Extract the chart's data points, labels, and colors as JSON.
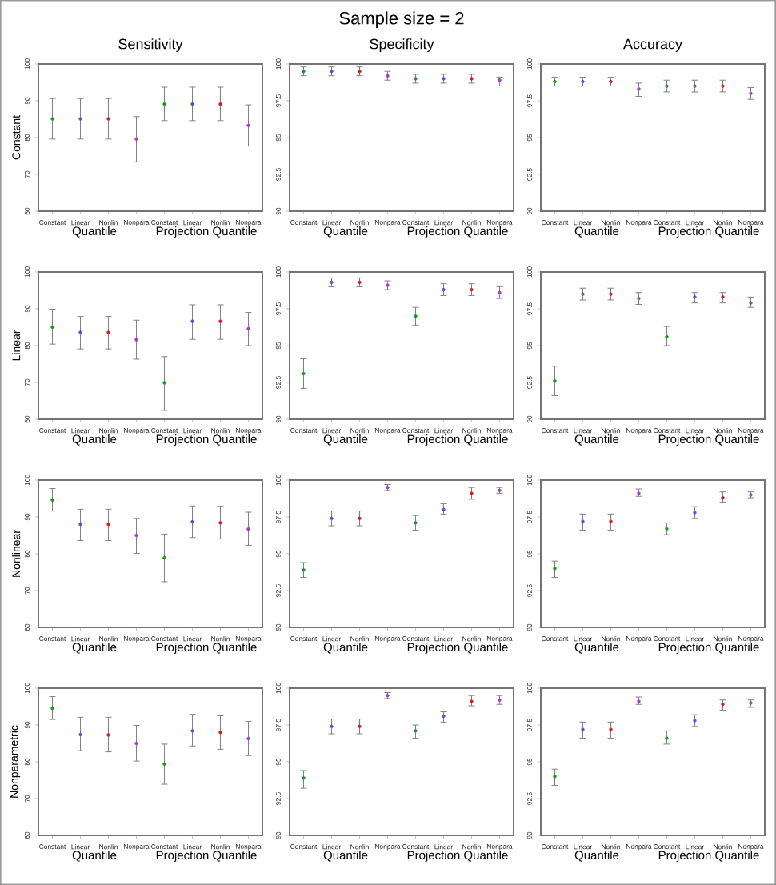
{
  "chart_data": [
    {
      "type": "scatter",
      "title": "Sensitivity",
      "ylabel": "Constant",
      "categories": [
        "Constant",
        "Linear",
        "Nonlin",
        "Nonpara",
        "Constant",
        "Linear",
        "Nonlin",
        "Nonpara"
      ],
      "values": [
        85.1,
        85.1,
        85.1,
        79.6,
        89.1,
        89.1,
        89.1,
        83.3
      ],
      "errors": [
        [
          79.6,
          90.6
        ],
        [
          79.6,
          90.6
        ],
        [
          79.6,
          90.6
        ],
        [
          73.4,
          85.7
        ],
        [
          84.6,
          93.7
        ],
        [
          84.6,
          93.7
        ],
        [
          84.6,
          93.7
        ],
        [
          77.7,
          88.9
        ]
      ],
      "colors": [
        "#1a9a1a",
        "#4a5ad0",
        "#d02020",
        "#a040c0",
        "#1a9a1a",
        "#4a5ad0",
        "#d02020",
        "#a040c0"
      ],
      "ylim": [
        60,
        100
      ],
      "yticks": [
        60,
        70,
        80,
        90,
        100
      ],
      "annotations": [
        "Quantile",
        "Projection Quantile"
      ]
    },
    {
      "type": "scatter",
      "title": "Sample size = 2",
      "subtitle": "Specificity",
      "categories": [
        "Constant",
        "Linear",
        "Nonlin",
        "Nonpara",
        "Constant",
        "Linear",
        "Nonlin",
        "Nonpara"
      ],
      "values": [
        99.5,
        99.5,
        99.5,
        99.2,
        99.0,
        99.0,
        99.0,
        98.9
      ],
      "errors": [
        [
          99.2,
          99.8
        ],
        [
          99.2,
          99.8
        ],
        [
          99.2,
          99.8
        ],
        [
          98.9,
          99.5
        ],
        [
          98.7,
          99.3
        ],
        [
          98.7,
          99.3
        ],
        [
          98.7,
          99.3
        ],
        [
          98.5,
          99.1
        ]
      ],
      "colors": [
        "#1a9a1a",
        "#4a5ad0",
        "#d02020",
        "#a040c0",
        "#1a9a1a",
        "#4a5ad0",
        "#d02020",
        "#a040c0"
      ],
      "ylim": [
        90,
        100
      ],
      "yticks": [
        90,
        92.5,
        95,
        97.5,
        100
      ],
      "annotations": [
        "Quantile",
        "Projection Quantile"
      ]
    },
    {
      "type": "scatter",
      "title": "Accuracy",
      "categories": [
        "Constant",
        "Linear",
        "Nonlin",
        "Nonpara",
        "Constant",
        "Linear",
        "Nonlin",
        "Nonpara"
      ],
      "values": [
        98.8,
        98.8,
        98.8,
        98.3,
        98.5,
        98.5,
        98.5,
        98.0
      ],
      "errors": [
        [
          98.5,
          99.1
        ],
        [
          98.5,
          99.1
        ],
        [
          98.5,
          99.1
        ],
        [
          97.8,
          98.7
        ],
        [
          98.1,
          98.9
        ],
        [
          98.1,
          98.9
        ],
        [
          98.1,
          98.9
        ],
        [
          97.6,
          98.4
        ]
      ],
      "colors": [
        "#1a9a1a",
        "#4a5ad0",
        "#d02020",
        "#a040c0",
        "#1a9a1a",
        "#4a5ad0",
        "#d02020",
        "#a040c0"
      ],
      "ylim": [
        90,
        100
      ],
      "yticks": [
        90,
        92.5,
        95,
        97.5,
        100
      ],
      "annotations": [
        "Quantile",
        "Projection Quantile"
      ]
    },
    {
      "type": "scatter",
      "ylabel": "Linear",
      "categories": [
        "Constant",
        "Linear",
        "Nonlin",
        "Nonpara",
        "Constant",
        "Linear",
        "Nonlin",
        "Nonpara"
      ],
      "values": [
        85.0,
        83.6,
        83.6,
        81.6,
        69.9,
        86.6,
        86.6,
        84.6
      ],
      "errors": [
        [
          80.4,
          89.9
        ],
        [
          79.1,
          87.9
        ],
        [
          79.1,
          87.9
        ],
        [
          76.3,
          86.9
        ],
        [
          62.4,
          77.0
        ],
        [
          81.7,
          91.1
        ],
        [
          81.7,
          91.1
        ],
        [
          80.0,
          89.0
        ]
      ],
      "colors": [
        "#1a9a1a",
        "#4a5ad0",
        "#d02020",
        "#a040c0",
        "#1a9a1a",
        "#4a5ad0",
        "#d02020",
        "#a040c0"
      ],
      "ylim": [
        60,
        100
      ],
      "yticks": [
        60,
        70,
        80,
        90,
        100
      ],
      "annotations": [
        "Quantile",
        "Projection Quantile"
      ]
    },
    {
      "type": "scatter",
      "categories": [
        "Constant",
        "Linear",
        "Nonlin",
        "Nonpara",
        "Constant",
        "Linear",
        "Nonlin",
        "Nonpara"
      ],
      "values": [
        93.1,
        99.3,
        99.3,
        99.1,
        97.0,
        98.8,
        98.8,
        98.6
      ],
      "errors": [
        [
          92.1,
          94.1
        ],
        [
          99.0,
          99.6
        ],
        [
          99.0,
          99.6
        ],
        [
          98.8,
          99.4
        ],
        [
          96.4,
          97.6
        ],
        [
          98.4,
          99.2
        ],
        [
          98.4,
          99.2
        ],
        [
          98.2,
          99.0
        ]
      ],
      "colors": [
        "#1a9a1a",
        "#4a5ad0",
        "#d02020",
        "#a040c0",
        "#1a9a1a",
        "#4a5ad0",
        "#d02020",
        "#a040c0"
      ],
      "ylim": [
        90,
        100
      ],
      "yticks": [
        90,
        92.5,
        95,
        97.5,
        100
      ],
      "annotations": [
        "Quantile",
        "Projection Quantile"
      ]
    },
    {
      "type": "scatter",
      "categories": [
        "Constant",
        "Linear",
        "Nonlin",
        "Nonpara",
        "Constant",
        "Linear",
        "Nonlin",
        "Nonpara"
      ],
      "values": [
        92.6,
        98.5,
        98.5,
        98.2,
        95.6,
        98.3,
        98.3,
        97.9
      ],
      "errors": [
        [
          91.6,
          93.6
        ],
        [
          98.1,
          98.9
        ],
        [
          98.1,
          98.9
        ],
        [
          97.8,
          98.6
        ],
        [
          95.0,
          96.3
        ],
        [
          97.9,
          98.6
        ],
        [
          97.9,
          98.6
        ],
        [
          97.6,
          98.3
        ]
      ],
      "colors": [
        "#1a9a1a",
        "#4a5ad0",
        "#d02020",
        "#a040c0",
        "#1a9a1a",
        "#4a5ad0",
        "#d02020",
        "#a040c0"
      ],
      "ylim": [
        90,
        100
      ],
      "yticks": [
        90,
        92.5,
        95,
        97.5,
        100
      ],
      "annotations": [
        "Quantile",
        "Projection Quantile"
      ]
    },
    {
      "type": "scatter",
      "ylabel": "Nonlinear",
      "categories": [
        "Constant",
        "Linear",
        "Nonlin",
        "Nonpara",
        "Constant",
        "Linear",
        "Nonlin",
        "Nonpara"
      ],
      "values": [
        94.6,
        88.0,
        88.0,
        85.0,
        78.9,
        88.7,
        88.4,
        86.7
      ],
      "errors": [
        [
          91.6,
          97.7
        ],
        [
          83.6,
          92.1
        ],
        [
          83.6,
          92.1
        ],
        [
          80.1,
          89.6
        ],
        [
          72.4,
          85.3
        ],
        [
          84.4,
          93.0
        ],
        [
          84.0,
          92.9
        ],
        [
          82.3,
          91.3
        ]
      ],
      "colors": [
        "#1a9a1a",
        "#4a5ad0",
        "#d02020",
        "#a040c0",
        "#1a9a1a",
        "#4a5ad0",
        "#d02020",
        "#a040c0"
      ],
      "ylim": [
        60,
        100
      ],
      "yticks": [
        60,
        70,
        80,
        90,
        100
      ],
      "annotations": [
        "Quantile",
        "Projection Quantile"
      ]
    },
    {
      "type": "scatter",
      "categories": [
        "Constant",
        "Linear",
        "Nonlin",
        "Nonpara",
        "Constant",
        "Linear",
        "Nonlin",
        "Nonpara"
      ],
      "values": [
        93.9,
        97.4,
        97.4,
        99.5,
        97.1,
        98.0,
        99.1,
        99.3
      ],
      "errors": [
        [
          93.4,
          94.4
        ],
        [
          96.9,
          97.9
        ],
        [
          96.9,
          97.9
        ],
        [
          99.3,
          99.7
        ],
        [
          96.6,
          97.6
        ],
        [
          97.7,
          98.4
        ],
        [
          98.7,
          99.5
        ],
        [
          99.1,
          99.5
        ]
      ],
      "colors": [
        "#1a9a1a",
        "#4a5ad0",
        "#d02020",
        "#a040c0",
        "#1a9a1a",
        "#4a5ad0",
        "#d02020",
        "#a040c0"
      ],
      "ylim": [
        90,
        100
      ],
      "yticks": [
        90,
        92.5,
        95,
        97.5,
        100
      ],
      "annotations": [
        "Quantile",
        "Projection Quantile"
      ]
    },
    {
      "type": "scatter",
      "categories": [
        "Constant",
        "Linear",
        "Nonlin",
        "Nonpara",
        "Constant",
        "Linear",
        "Nonlin",
        "Nonpara"
      ],
      "values": [
        94.0,
        97.2,
        97.2,
        99.1,
        96.7,
        97.8,
        98.8,
        99.0
      ],
      "errors": [
        [
          93.4,
          94.5
        ],
        [
          96.6,
          97.7
        ],
        [
          96.6,
          97.7
        ],
        [
          98.9,
          99.4
        ],
        [
          96.3,
          97.1
        ],
        [
          97.4,
          98.2
        ],
        [
          98.5,
          99.2
        ],
        [
          98.8,
          99.2
        ]
      ],
      "colors": [
        "#1a9a1a",
        "#4a5ad0",
        "#d02020",
        "#a040c0",
        "#1a9a1a",
        "#4a5ad0",
        "#d02020",
        "#a040c0"
      ],
      "ylim": [
        90,
        100
      ],
      "yticks": [
        90,
        92.5,
        95,
        97.5,
        100
      ],
      "annotations": [
        "Quantile",
        "Projection Quantile"
      ]
    },
    {
      "type": "scatter",
      "ylabel": "Nonparametric",
      "categories": [
        "Constant",
        "Linear",
        "Nonlin",
        "Nonpara",
        "Constant",
        "Linear",
        "Nonlin",
        "Nonpara"
      ],
      "values": [
        94.5,
        87.4,
        87.3,
        85.0,
        79.4,
        88.4,
        88.0,
        86.3
      ],
      "errors": [
        [
          91.5,
          97.7
        ],
        [
          83.0,
          92.1
        ],
        [
          82.7,
          92.1
        ],
        [
          80.2,
          89.9
        ],
        [
          73.9,
          84.8
        ],
        [
          84.3,
          92.9
        ],
        [
          83.4,
          92.5
        ],
        [
          81.7,
          91.0
        ]
      ],
      "colors": [
        "#1a9a1a",
        "#4a5ad0",
        "#d02020",
        "#a040c0",
        "#1a9a1a",
        "#4a5ad0",
        "#d02020",
        "#a040c0"
      ],
      "ylim": [
        60,
        100
      ],
      "yticks": [
        60,
        70,
        80,
        90,
        100
      ],
      "annotations": [
        "Quantile",
        "Projection Quantile"
      ]
    },
    {
      "type": "scatter",
      "categories": [
        "Constant",
        "Linear",
        "Nonlin",
        "Nonpara",
        "Constant",
        "Linear",
        "Nonlin",
        "Nonpara"
      ],
      "values": [
        93.9,
        97.4,
        97.4,
        99.5,
        97.1,
        98.1,
        99.1,
        99.2
      ],
      "errors": [
        [
          93.2,
          94.4
        ],
        [
          96.9,
          97.9
        ],
        [
          96.9,
          97.9
        ],
        [
          99.3,
          99.7
        ],
        [
          96.6,
          97.5
        ],
        [
          97.7,
          98.4
        ],
        [
          98.8,
          99.5
        ],
        [
          98.9,
          99.5
        ]
      ],
      "colors": [
        "#1a9a1a",
        "#4a5ad0",
        "#d02020",
        "#a040c0",
        "#1a9a1a",
        "#4a5ad0",
        "#d02020",
        "#a040c0"
      ],
      "ylim": [
        90,
        100
      ],
      "yticks": [
        90,
        92.5,
        95,
        97.5,
        100
      ],
      "annotations": [
        "Quantile",
        "Projection Quantile"
      ]
    },
    {
      "type": "scatter",
      "categories": [
        "Constant",
        "Linear",
        "Nonlin",
        "Nonpara",
        "Constant",
        "Linear",
        "Nonlin",
        "Nonpara"
      ],
      "values": [
        94.0,
        97.2,
        97.2,
        99.1,
        96.6,
        97.8,
        98.9,
        99.0
      ],
      "errors": [
        [
          93.4,
          94.5
        ],
        [
          96.6,
          97.7
        ],
        [
          96.6,
          97.7
        ],
        [
          98.9,
          99.4
        ],
        [
          96.2,
          97.1
        ],
        [
          97.4,
          98.2
        ],
        [
          98.5,
          99.2
        ],
        [
          98.7,
          99.2
        ]
      ],
      "colors": [
        "#1a9a1a",
        "#4a5ad0",
        "#d02020",
        "#a040c0",
        "#1a9a1a",
        "#4a5ad0",
        "#d02020",
        "#a040c0"
      ],
      "ylim": [
        90,
        100
      ],
      "yticks": [
        90,
        92.5,
        95,
        97.5,
        100
      ],
      "annotations": [
        "Quantile",
        "Projection Quantile"
      ]
    }
  ]
}
